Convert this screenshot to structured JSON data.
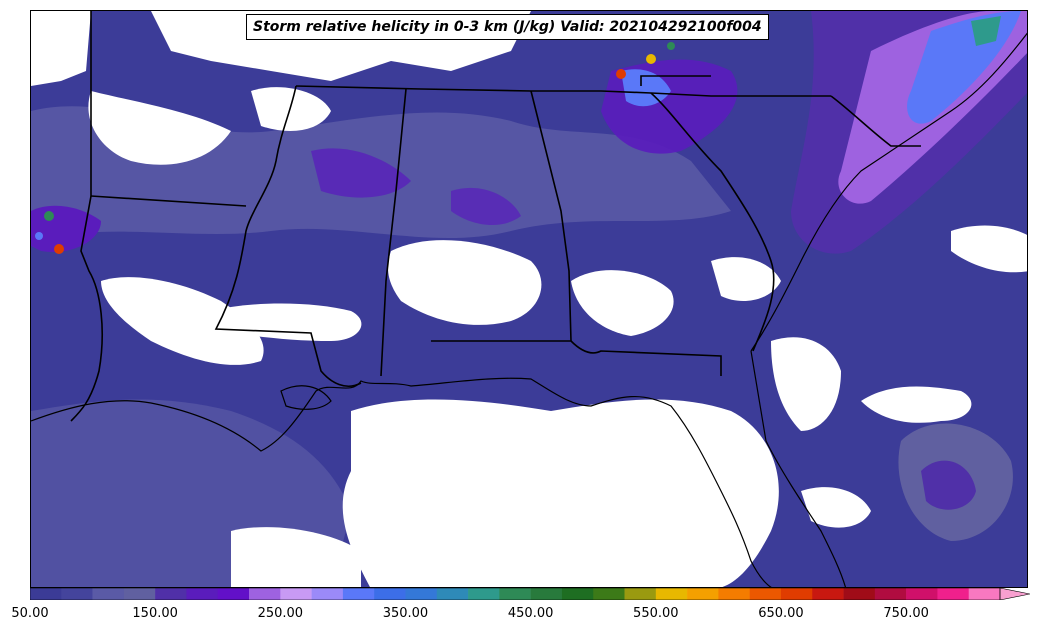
{
  "title": "Storm relative helicity in 0-3 km (J/kg) Valid: 202104292100f004",
  "colorbar": {
    "min": 50,
    "max": 825,
    "step": 25,
    "extend": "max",
    "tick_labels": [
      "50.00",
      "150.00",
      "250.00",
      "350.00",
      "450.00",
      "550.00",
      "650.00",
      "750.00"
    ],
    "tick_values": [
      50,
      150,
      250,
      350,
      450,
      550,
      650,
      750
    ],
    "colors": [
      "#3b3b96",
      "#44449c",
      "#5a5aa6",
      "#6060a0",
      "#5030a8",
      "#5a1cbc",
      "#6210c8",
      "#9e62e0",
      "#c89af4",
      "#9b8af8",
      "#5a78f8",
      "#3c6ee8",
      "#3478d8",
      "#2e8ab8",
      "#2e9a8c",
      "#2e8a56",
      "#287a3c",
      "#1e6e22",
      "#3c7a18",
      "#9a9a10",
      "#e8b800",
      "#f4a000",
      "#f47c00",
      "#ec5800",
      "#e03c00",
      "#c81810",
      "#a00c18",
      "#b00c40",
      "#d0106a",
      "#f0208c",
      "#f878c0"
    ]
  },
  "map_features": [
    "coastlines",
    "state-borders",
    "storm-relative-helicity-fill"
  ]
}
